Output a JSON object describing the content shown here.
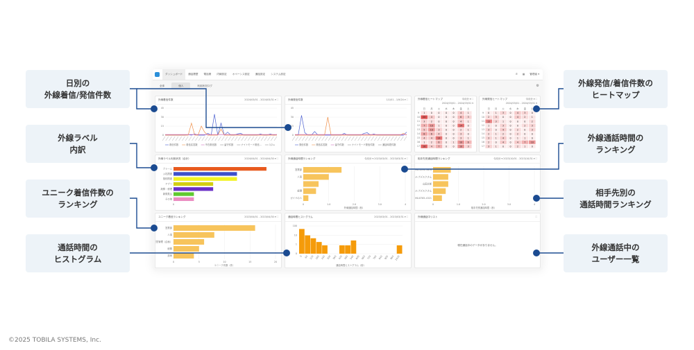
{
  "callouts_left": [
    {
      "label": "日別の\n外線着信/発信件数"
    },
    {
      "label": "外線ラベル\n内訳"
    },
    {
      "label": "ユニーク着信件数の\nランキング"
    },
    {
      "label": "通話時間の\nヒストグラム"
    }
  ],
  "callouts_right": [
    {
      "label": "外線発信/着信件数の\nヒートマップ"
    },
    {
      "label": "外線通話時間の\nランキング"
    },
    {
      "label": "相手先別の\n通話時間ランキング"
    },
    {
      "label": "外線通話中の\nユーザー一覧"
    }
  ],
  "copyright": "©2025 TOBILA SYSTEMS, Inc.",
  "colors": {
    "connector": "#1b4b91",
    "callout_bg": "#edf3f8",
    "bar_orange": "#f7c45c",
    "hist_orange": "#f59b0a",
    "heat": "#e05050"
  },
  "dashboard": {
    "nav": [
      "ダッシュボード",
      "通話履歴",
      "電話帳",
      "内線設定",
      "オペーシス設定",
      "通話設定",
      "システム設定"
    ],
    "nav_right": [
      "✆",
      "▦",
      "管理者 ▾"
    ],
    "tabs": [
      "全体",
      "個人",
      "利用状況ログ"
    ],
    "panels": {
      "inbound_daily": {
        "title": "外線着信件数",
        "control": "2024/03/01 - 2024/03/31 ▾  ⛶"
      },
      "outbound_daily": {
        "title": "外線発信件数",
        "control": "1/1/01 - 1/9/24 ▾  ⛶"
      },
      "heat_in": {
        "title": "外線着信ヒートマップ",
        "control": "今月分 ▾ ⛶",
        "range": "2024/03/01 - 2024/03/31 ▾"
      },
      "heat_out": {
        "title": "外線発信ヒートマップ",
        "control": "今月分 ▾ ⛶",
        "range": "2024/03/01 - 2024/03/31 ▾"
      },
      "labels": {
        "title": "外線ラベル利用状況（合計）",
        "control": "2024/04/01 - 2024/04/30 ▾  ⛶"
      },
      "talk_rank": {
        "title": "外線通話時間ランキング",
        "control": "今月分 ▾  2023/03/01 - 2023/03/31 ▾  ⛶"
      },
      "peer_rank": {
        "title": "相手先別通話時間ランキング",
        "control": "今月分 ▾  2023/10/01 - 2023/10/31 ▾  ⛶"
      },
      "unique_rank": {
        "title": "ユニーク着信ランキング",
        "control": "2023/04/01 - 2023/04/30 ▾  ⛶"
      },
      "histogram": {
        "title": "通話時間ヒストグラム",
        "control": "2023/03/01 - 2023/03/31 ▾  ⛶"
      },
      "active_calls": {
        "title": "外線通話中リスト",
        "control": "⛶",
        "empty": "現在通話中のデータがありません。"
      }
    }
  },
  "chart_data": [
    {
      "id": "inbound_daily",
      "type": "line",
      "ylim": [
        0,
        45
      ],
      "yticks": [
        "0",
        "15",
        "30",
        "45"
      ],
      "series": [
        {
          "color": "#4a5fd0",
          "values": [
            0,
            0,
            0,
            0,
            0,
            0,
            0,
            1,
            0,
            2,
            0,
            0,
            0,
            3,
            0,
            35,
            0,
            20,
            0,
            5,
            0,
            0,
            2,
            3,
            0,
            0,
            0,
            0,
            0,
            2,
            0,
            0,
            2,
            0,
            1
          ]
        },
        {
          "color": "#f0904a",
          "values": [
            0,
            0,
            0,
            0,
            0,
            0,
            0,
            0,
            20,
            0,
            0,
            15,
            5,
            0,
            0,
            0,
            0,
            10,
            0,
            0,
            0,
            0,
            0,
            0,
            0,
            0,
            0,
            0,
            0,
            0,
            0,
            0,
            0,
            0,
            0
          ]
        },
        {
          "color": "#d070c0",
          "values": [
            1,
            1,
            1,
            1,
            1,
            1,
            1,
            1,
            1,
            1,
            1,
            1,
            1,
            1,
            1,
            1,
            1,
            1,
            1,
            1,
            1,
            1,
            1,
            1,
            1,
            1,
            1,
            1,
            1,
            1,
            1,
            1,
            1,
            1,
            1
          ]
        }
      ],
      "legend": [
        "着信件数",
        "着信応答数",
        "不在着信数",
        "留守件数",
        "ナイトモード着信...",
        "1/2 ▸"
      ]
    },
    {
      "id": "outbound_daily",
      "type": "line",
      "ylim": [
        0,
        45
      ],
      "yticks": [
        "0",
        "15",
        "30",
        "45"
      ],
      "series": [
        {
          "color": "#4a5fd0",
          "values": [
            0,
            0,
            33,
            4,
            0,
            0,
            6,
            0,
            0,
            0,
            0,
            0,
            0,
            0,
            0,
            3,
            0,
            0,
            0,
            0,
            0,
            3,
            4,
            0,
            2,
            0,
            0,
            0,
            0,
            0,
            0,
            0,
            0,
            0,
            5
          ]
        },
        {
          "color": "#f0904a",
          "values": [
            0,
            0,
            0,
            0,
            0,
            0,
            0,
            0,
            0,
            0,
            30,
            0,
            0,
            0,
            0,
            0,
            0,
            0,
            0,
            0,
            0,
            0,
            0,
            0,
            0,
            0,
            0,
            0,
            0,
            0,
            0,
            0,
            0,
            3,
            0
          ]
        },
        {
          "color": "#d070c0",
          "values": [
            1,
            1,
            1,
            1,
            1,
            1,
            1,
            1,
            1,
            1,
            1,
            1,
            1,
            1,
            1,
            1,
            1,
            1,
            1,
            1,
            1,
            1,
            1,
            1,
            1,
            1,
            1,
            1,
            1,
            1,
            1,
            1,
            1,
            1,
            1
          ]
        }
      ],
      "legend": [
        "発信件数",
        "発信応答数",
        "留守件数",
        "ナイトモード発信件数",
        "通話時間件数"
      ]
    },
    {
      "id": "heat_in",
      "type": "heatmap",
      "cols": [
        "日",
        "月",
        "火",
        "水",
        "木",
        "金",
        "土"
      ],
      "rows": [
        "9",
        "10",
        "11",
        "12",
        "13",
        "14",
        "15",
        "16",
        "17"
      ],
      "values": [
        [
          1,
          0,
          0,
          0,
          0,
          4,
          1
        ],
        [
          20,
          4,
          0,
          0,
          0,
          6,
          3
        ],
        [
          3,
          2,
          0,
          0,
          0,
          4,
          1
        ],
        [
          7,
          10,
          1,
          0,
          0,
          14,
          0
        ],
        [
          5,
          10,
          3,
          0,
          0,
          2,
          1
        ],
        [
          8,
          6,
          4,
          0,
          0,
          3,
          0
        ],
        [
          4,
          4,
          14,
          0,
          0,
          3,
          1
        ],
        [
          1,
          2,
          6,
          0,
          1,
          10,
          6
        ],
        [
          16,
          4,
          7,
          0,
          0,
          10,
          3
        ]
      ]
    },
    {
      "id": "heat_out",
      "type": "heatmap",
      "cols": [
        "日",
        "月",
        "火",
        "水",
        "木",
        "金",
        "土"
      ],
      "rows": [
        "9",
        "10",
        "11",
        "12",
        "13",
        "14",
        "15",
        "16",
        "17"
      ],
      "values": [
        [
          0,
          1,
          3,
          0,
          4,
          3,
          0
        ],
        [
          2,
          3,
          0,
          0,
          4,
          2,
          1
        ],
        [
          12,
          3,
          1,
          0,
          0,
          0,
          2
        ],
        [
          1,
          0,
          3,
          0,
          0,
          2,
          3
        ],
        [
          3,
          0,
          4,
          0,
          2,
          0,
          3
        ],
        [
          2,
          1,
          2,
          0,
          2,
          0,
          0
        ],
        [
          3,
          1,
          4,
          0,
          1,
          1,
          0
        ],
        [
          2,
          0,
          4,
          0,
          4,
          7,
          10
        ],
        [
          3,
          1,
          0,
          0,
          2,
          1,
          0
        ]
      ]
    },
    {
      "id": "labels",
      "type": "bar",
      "orientation": "horizontal",
      "categories": [
        "クレーム",
        "入札関連",
        "契約関連",
        "アプリ",
        "故障・修理",
        "新規見込",
        "その他"
      ],
      "values": [
        8.2,
        5.6,
        5.6,
        3.5,
        3.5,
        1.8,
        1.8
      ],
      "colors": [
        "#e85a1e",
        "#3c4fcb",
        "#f2f224",
        "#d2cf12",
        "#6a30c8",
        "#5fc92f",
        "#eb8dc2"
      ],
      "xlim": [
        0,
        9
      ],
      "xticks": [
        "0"
      ]
    },
    {
      "id": "talk_rank",
      "type": "bar",
      "orientation": "horizontal",
      "categories": [
        "営業部",
        "人事",
        "",
        "経理",
        "ガイドの人"
      ],
      "values": [
        1.5,
        1.0,
        0.6,
        0.5,
        0.2
      ],
      "xlim": [
        0,
        4
      ],
      "xticks": [
        "0",
        "1.0",
        "2.0",
        "3.0",
        "4"
      ],
      "xlabel": "外線通話時間（秒）"
    },
    {
      "id": "peer_rank",
      "type": "bar",
      "orientation": "horizontal",
      "categories": [
        "090-1234-5678",
        "ヘルプデスクさん",
        "山田太郎",
        "ヘルプデスクさん",
        "090-8765-4321"
      ],
      "values": [
        0.7,
        0.6,
        0.6,
        0.5,
        0.35
      ],
      "xlim": [
        0,
        4
      ],
      "xticks": [
        "0",
        "1.0",
        "2.0",
        "3.0",
        "4"
      ],
      "xlabel": "相手先別通話時間（秒）"
    },
    {
      "id": "unique_rank",
      "type": "bar",
      "orientation": "horizontal",
      "categories": [
        "営業部",
        "人事",
        "経営管理（企画）",
        "総務",
        "技術"
      ],
      "values": [
        16,
        8,
        6,
        5,
        4
      ],
      "xlim": [
        0,
        20
      ],
      "xticks": [
        "0",
        "5",
        "10",
        "15",
        "20"
      ],
      "xlabel": "ユニーク件数（件）"
    },
    {
      "id": "histogram",
      "type": "bar",
      "orientation": "vertical",
      "categories": [
        "0",
        "60",
        "120",
        "180",
        "240",
        "300",
        "360",
        "420",
        "480",
        "540",
        "600",
        "660",
        "720",
        "780",
        "840",
        "900",
        "960",
        "1020"
      ],
      "values": [
        60,
        20,
        12,
        6,
        3,
        0,
        0,
        3,
        3,
        8,
        0,
        0,
        0,
        0,
        0,
        0,
        0,
        3
      ],
      "yscale": "log",
      "yticks": [
        "0",
        "1",
        "10",
        "100"
      ],
      "xlabel": "通話時間ヒストグラム（秒）"
    }
  ]
}
